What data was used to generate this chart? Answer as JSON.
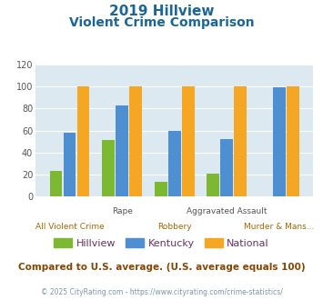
{
  "title_line1": "2019 Hillview",
  "title_line2": "Violent Crime Comparison",
  "categories": [
    "All Violent Crime",
    "Rape",
    "Robbery",
    "Aggravated Assault",
    "Murder & Mans..."
  ],
  "series": {
    "Hillview": [
      23,
      51,
      13,
      21,
      0
    ],
    "Kentucky": [
      58,
      83,
      60,
      52,
      99
    ],
    "National": [
      100,
      100,
      100,
      100,
      100
    ]
  },
  "colors": {
    "Hillview": "#7cb832",
    "Kentucky": "#4d8fd1",
    "National": "#f5a623"
  },
  "ylim": [
    0,
    120
  ],
  "yticks": [
    0,
    20,
    40,
    60,
    80,
    100,
    120
  ],
  "footnote": "Compared to U.S. average. (U.S. average equals 100)",
  "copyright": "© 2025 CityRating.com - https://www.cityrating.com/crime-statistics/",
  "title_color": "#1a6699",
  "footnote_color": "#884400",
  "copyright_color": "#7799aa",
  "legend_text_color": "#663366",
  "top_label_color": "#555555",
  "bottom_label_color": "#aa6600",
  "plot_bg": "#dce9f0"
}
